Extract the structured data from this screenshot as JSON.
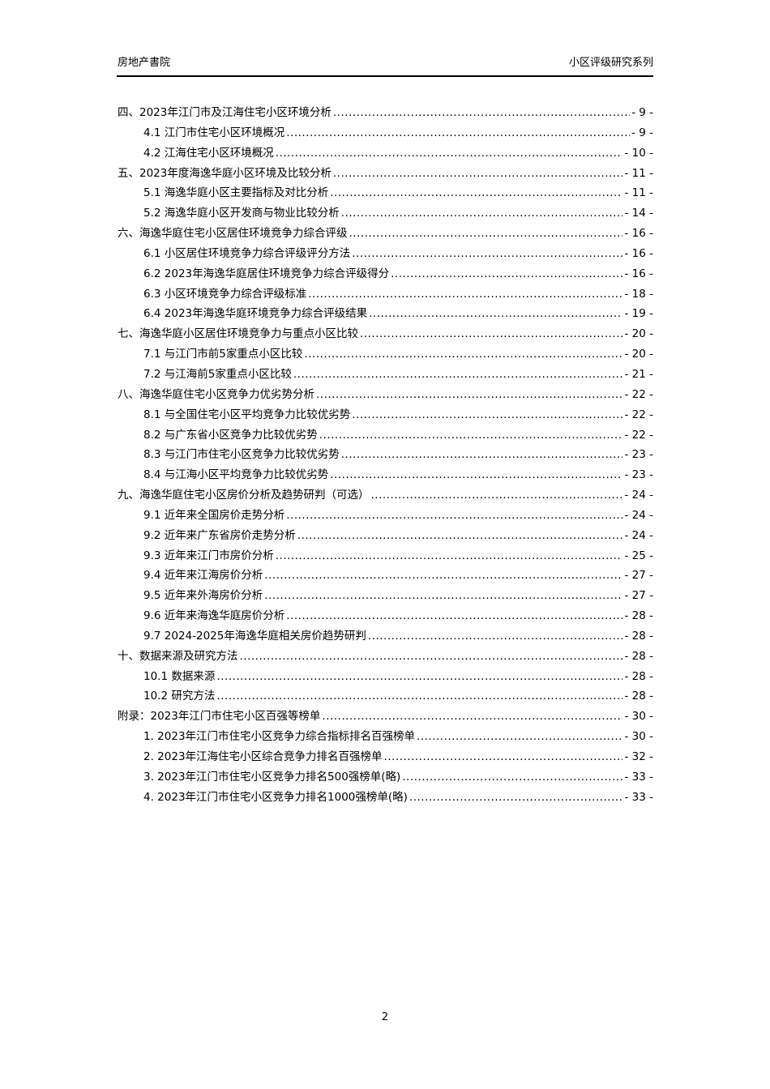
{
  "header": {
    "left": "房地产書院",
    "right": "小区评级研究系列"
  },
  "toc": [
    {
      "level": 1,
      "title": "四、2023年江门市及江海住宅小区环境分析",
      "page": "- 9 -"
    },
    {
      "level": 2,
      "title": "4.1 江门市住宅小区环境概况",
      "page": "- 9 -"
    },
    {
      "level": 2,
      "title": "4.2 江海住宅小区环境概况",
      "page": "- 10 -"
    },
    {
      "level": 1,
      "title": "五、2023年度海逸华庭小区环境及比较分析",
      "page": "- 11 -"
    },
    {
      "level": 2,
      "title": "5.1 海逸华庭小区主要指标及对比分析",
      "page": "- 11 -"
    },
    {
      "level": 2,
      "title": "5.2 海逸华庭小区开发商与物业比较分析",
      "page": "- 14 -"
    },
    {
      "level": 1,
      "title": "六、海逸华庭住宅小区居住环境竞争力综合评级",
      "page": "- 16 -"
    },
    {
      "level": 2,
      "title": "6.1 小区居住环境竞争力综合评级评分方法",
      "page": "- 16 -"
    },
    {
      "level": 2,
      "title": "6.2 2023年海逸华庭居住环境竞争力综合评级得分",
      "page": "- 16 -"
    },
    {
      "level": 2,
      "title": "6.3 小区环境竞争力综合评级标准",
      "page": "- 18 -"
    },
    {
      "level": 2,
      "title": "6.4 2023年海逸华庭环境竞争力综合评级结果",
      "page": "- 19 -"
    },
    {
      "level": 1,
      "title": "七、海逸华庭小区居住环境竞争力与重点小区比较",
      "page": "- 20 -"
    },
    {
      "level": 2,
      "title": "7.1 与江门市前5家重点小区比较",
      "page": "- 20 -"
    },
    {
      "level": 2,
      "title": "7.2 与江海前5家重点小区比较",
      "page": "- 21 -"
    },
    {
      "level": 1,
      "title": "八、海逸华庭住宅小区竞争力优劣势分析",
      "page": "- 22 -"
    },
    {
      "level": 2,
      "title": "8.1 与全国住宅小区平均竞争力比较优劣势",
      "page": "- 22 -"
    },
    {
      "level": 2,
      "title": "8.2 与广东省小区竞争力比较优劣势",
      "page": "- 22 -"
    },
    {
      "level": 2,
      "title": "8.3 与江门市住宅小区竞争力比较优劣势",
      "page": "- 23 -"
    },
    {
      "level": 2,
      "title": "8.4 与江海小区平均竞争力比较优劣势",
      "page": "- 23 -"
    },
    {
      "level": 1,
      "title": "九、海逸华庭住宅小区房价分析及趋势研判（可选）",
      "page": "- 24 -"
    },
    {
      "level": 2,
      "title": "9.1 近年来全国房价走势分析",
      "page": "- 24 -"
    },
    {
      "level": 2,
      "title": "9.2 近年来广东省房价走势分析",
      "page": "- 24 -"
    },
    {
      "level": 2,
      "title": "9.3 近年来江门市房价分析",
      "page": "- 25 -"
    },
    {
      "level": 2,
      "title": "9.4 近年来江海房价分析",
      "page": "- 27 -"
    },
    {
      "level": 2,
      "title": "9.5 近年来外海房价分析",
      "page": "- 27 -"
    },
    {
      "level": 2,
      "title": "9.6 近年来海逸华庭房价分析",
      "page": "- 28 -"
    },
    {
      "level": 2,
      "title": "9.7 2024-2025年海逸华庭相关房价趋势研判",
      "page": "- 28 -"
    },
    {
      "level": 1,
      "title": "十、数据来源及研究方法",
      "page": "- 28 -"
    },
    {
      "level": 2,
      "title": "10.1 数据来源",
      "page": "- 28 -"
    },
    {
      "level": 2,
      "title": "10.2 研究方法",
      "page": "- 28 -"
    },
    {
      "level": 1,
      "title": "附录：2023年江门市住宅小区百强等榜单",
      "page": "- 30 -"
    },
    {
      "level": 2,
      "title": "1. 2023年江门市住宅小区竞争力综合指标排名百强榜单",
      "page": "- 30 -"
    },
    {
      "level": 2,
      "title": "2. 2023年江海住宅小区综合竞争力排名百强榜单",
      "page": "- 32 -"
    },
    {
      "level": 2,
      "title": "3. 2023年江门市住宅小区竞争力排名500强榜单(略)",
      "page": "- 33 -"
    },
    {
      "level": 2,
      "title": "4. 2023年江门市住宅小区竞争力排名1000强榜单(略)",
      "page": "- 33 -"
    }
  ],
  "page_number": "2"
}
